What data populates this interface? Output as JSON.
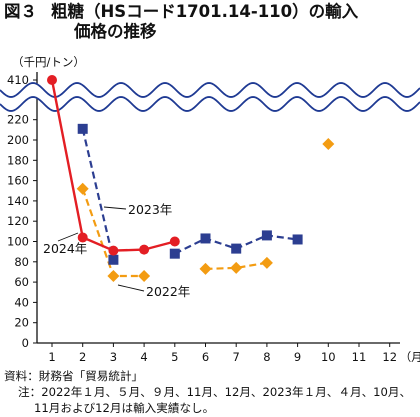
{
  "title": {
    "figure_label": "図３",
    "line1": "粗糖（HSコード1701.14-110）の輸入",
    "line2": "価格の推移"
  },
  "chart_data": {
    "type": "line",
    "unit_label": "（千円/トン）",
    "x_unit_label": "（月）",
    "categories": [
      1,
      2,
      3,
      4,
      5,
      6,
      7,
      8,
      9,
      10,
      11,
      12
    ],
    "y_ticks": [
      0,
      20,
      40,
      60,
      80,
      100,
      120,
      140,
      160,
      180,
      200,
      220,
      410
    ],
    "y_break": {
      "lower_max": 220,
      "upper_label": 410
    },
    "grid": false,
    "series": [
      {
        "name": "2022年",
        "color": "#f39c12",
        "marker": "diamond",
        "dash": true,
        "points": [
          [
            2,
            152
          ],
          [
            3,
            66
          ],
          [
            4,
            66
          ],
          [
            6,
            73
          ],
          [
            7,
            74
          ],
          [
            8,
            79
          ],
          [
            10,
            196
          ]
        ],
        "connected": [
          [
            2,
            3,
            4
          ],
          [
            6,
            7,
            8
          ]
        ]
      },
      {
        "name": "2023年",
        "color": "#2c3e91",
        "marker": "square",
        "dash": true,
        "points": [
          [
            2,
            211
          ],
          [
            3,
            82
          ],
          [
            5,
            88
          ],
          [
            6,
            103
          ],
          [
            7,
            93
          ],
          [
            8,
            106
          ],
          [
            9,
            102
          ]
        ],
        "connected": [
          [
            2,
            3
          ],
          [
            5,
            6,
            7,
            8,
            9
          ]
        ]
      },
      {
        "name": "2024年",
        "color": "#e31e24",
        "marker": "circle",
        "dash": false,
        "points": [
          [
            1,
            410
          ],
          [
            2,
            104
          ],
          [
            3,
            91
          ],
          [
            4,
            92
          ],
          [
            5,
            100
          ]
        ],
        "connected": [
          [
            1,
            2,
            3,
            4,
            5
          ]
        ]
      }
    ]
  },
  "footnotes": {
    "source": "資料：財務省「貿易統計」",
    "note_line1": "注：2022年１月、５月、９月、11月、12月、2023年１月、４月、10月、",
    "note_line2": "11月および12月は輸入実績なし。"
  },
  "colors": {
    "wave": "#1f3a93",
    "axis": "#111111"
  }
}
